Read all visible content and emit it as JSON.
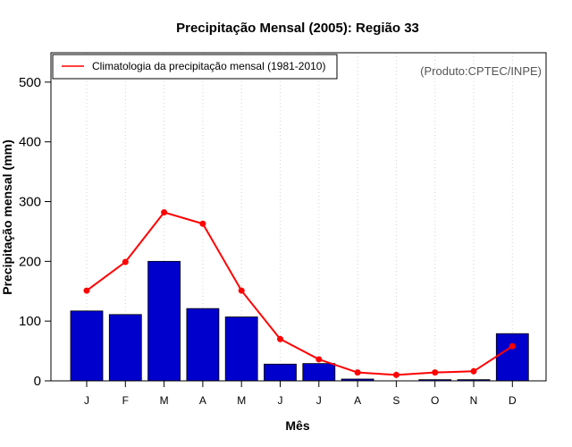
{
  "chart_data": {
    "type": "bar",
    "title": "Precipitação Mensal (2005): Região 33",
    "xlabel": "Mês",
    "ylabel": "Precipitação mensal (mm)",
    "ylim": [
      0,
      550
    ],
    "yticks": [
      0,
      100,
      200,
      300,
      400,
      500
    ],
    "grid": "vertical dotted",
    "categories": [
      "J",
      "F",
      "M",
      "A",
      "M",
      "J",
      "J",
      "A",
      "S",
      "O",
      "N",
      "D"
    ],
    "series": [
      {
        "name": "Precipitação mensal (2005)",
        "kind": "bar",
        "color": "#0000CD",
        "values": [
          117,
          111,
          200,
          121,
          107,
          28,
          29,
          3,
          0,
          2,
          2,
          79
        ]
      },
      {
        "name": "Climatologia da precipitação mensal (1981-2010)",
        "kind": "line",
        "color": "#FF0000",
        "values": [
          151,
          199,
          282,
          263,
          151,
          70,
          36,
          14,
          10,
          14,
          16,
          58
        ]
      }
    ],
    "legend": {
      "position": "top-left",
      "label": "Climatologia da precipitação mensal (1981-2010)"
    },
    "credit": "(Produto:CPTEC/INPE)"
  }
}
